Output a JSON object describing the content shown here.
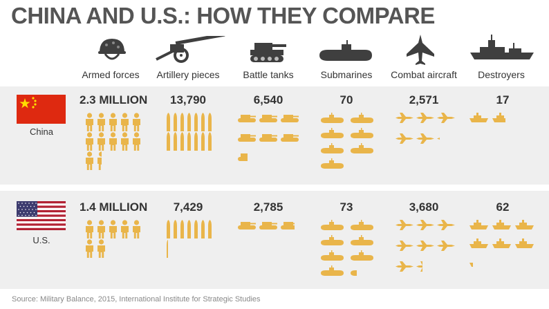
{
  "title": "CHINA AND U.S.: HOW THEY COMPARE",
  "categories": [
    {
      "label": "Armed forces",
      "icon": "soldier-helmet-icon"
    },
    {
      "label": "Artillery pieces",
      "icon": "artillery-gun-icon"
    },
    {
      "label": "Battle tanks",
      "icon": "tank-icon"
    },
    {
      "label": "Submarines",
      "icon": "submarine-icon"
    },
    {
      "label": "Combat aircraft",
      "icon": "fighter-jet-icon"
    },
    {
      "label": "Destroyers",
      "icon": "destroyer-ship-icon"
    }
  ],
  "countries": [
    {
      "name": "China",
      "flag": "china-flag",
      "labels": [
        "2.3 MILLION",
        "13,790",
        "6,540",
        "70",
        "2,571",
        "17"
      ]
    },
    {
      "name": "U.S.",
      "flag": "us-flag",
      "labels": [
        "1.4 MILLION",
        "7,429",
        "2,785",
        "73",
        "3,680",
        "62"
      ]
    }
  ],
  "source": "Source: Military Balance, 2015, International Institute for Strategic Studies",
  "colors": {
    "icon": "#e9b54a",
    "panel": "#efefef",
    "title": "#555555",
    "header_icon": "#3f3f3f"
  },
  "chart_data": {
    "type": "table",
    "title": "CHINA AND U.S.: HOW THEY COMPARE",
    "categories": [
      "Armed forces",
      "Artillery pieces",
      "Battle tanks",
      "Submarines",
      "Combat aircraft",
      "Destroyers"
    ],
    "series": [
      {
        "name": "China",
        "values": [
          2300000,
          13790,
          6540,
          70,
          2571,
          17
        ]
      },
      {
        "name": "U.S.",
        "values": [
          1400000,
          7429,
          2785,
          73,
          3680,
          62
        ]
      }
    ],
    "units_per_icon": [
      200000,
      1000,
      1000,
      10,
      500,
      10
    ]
  }
}
